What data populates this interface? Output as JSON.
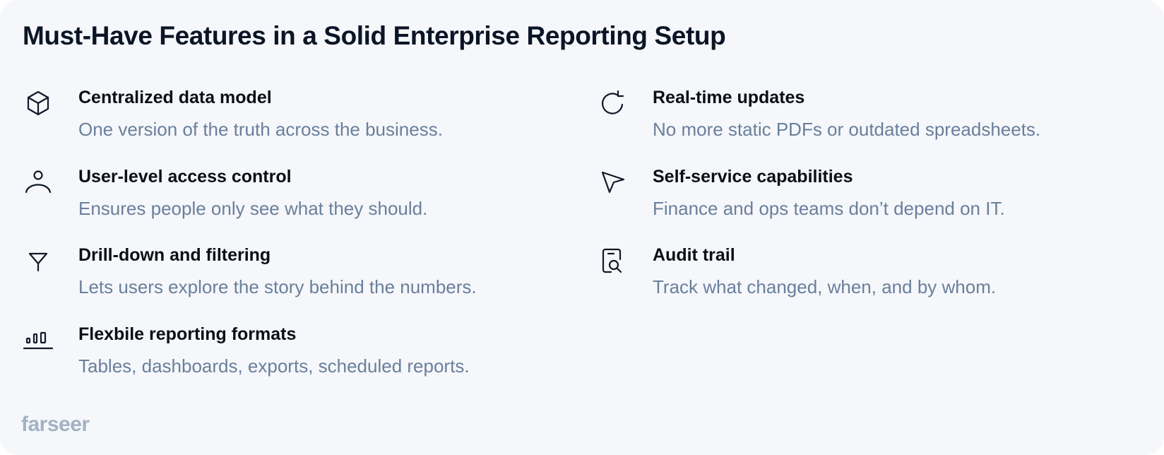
{
  "title": "Must-Have Features in a Solid Enterprise Reporting Setup",
  "features": [
    {
      "icon": "cube-icon",
      "title": "Centralized data model",
      "description": "One version of the truth across the business."
    },
    {
      "icon": "user-icon",
      "title": "User-level access control",
      "description": "Ensures people only see what they should."
    },
    {
      "icon": "filter-icon",
      "title": "Drill-down and filtering",
      "description": "Lets users explore the story behind the numbers."
    },
    {
      "icon": "bar-chart-icon",
      "title": "Flexbile reporting formats",
      "description": "Tables, dashboards, exports, scheduled reports."
    },
    {
      "icon": "refresh-icon",
      "title": "Real-time updates",
      "description": "No more static PDFs or outdated spreadsheets."
    },
    {
      "icon": "cursor-icon",
      "title": "Self-service capabilities",
      "description": "Finance and ops teams don’t depend on IT."
    },
    {
      "icon": "file-search-icon",
      "title": "Audit trail",
      "description": "Track what changed, when, and by whom."
    }
  ],
  "logo": "farseer",
  "colors": {
    "background": "#f5f7fa",
    "heading": "#0b1526",
    "description": "#6a7f9c",
    "logo": "#a3b1c4"
  }
}
